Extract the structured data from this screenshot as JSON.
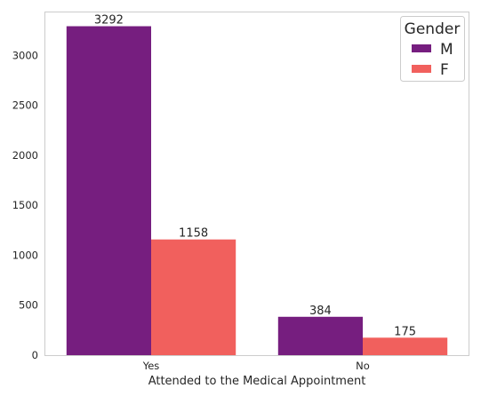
{
  "chart_data": {
    "type": "bar",
    "title": "",
    "xlabel": "Attended to the Medical Appointment",
    "ylabel": "",
    "categories": [
      "Yes",
      "No"
    ],
    "series": [
      {
        "name": "M",
        "values": [
          3292,
          384
        ],
        "color": "#761e7f"
      },
      {
        "name": "F",
        "values": [
          1158,
          175
        ],
        "color": "#f1605d"
      }
    ],
    "ylim": [
      0,
      3430
    ],
    "yticks": [
      0,
      500,
      1000,
      1500,
      2000,
      2500,
      3000
    ],
    "grid": false,
    "legend": {
      "title": "Gender",
      "placement": "top-right"
    },
    "data_labels": true
  }
}
